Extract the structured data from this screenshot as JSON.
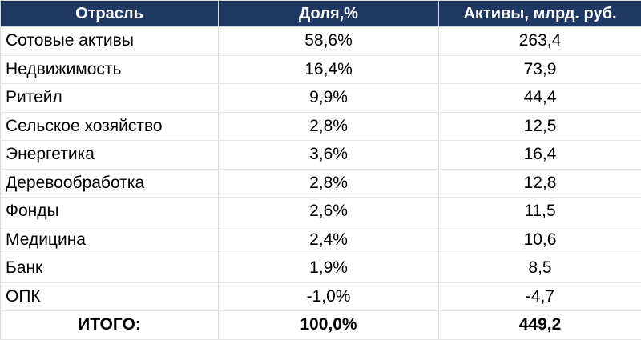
{
  "table": {
    "headers": [
      "Отрасль",
      "Доля,%",
      "Активы, млрд. руб."
    ],
    "rows": [
      [
        "Сотовые активы",
        "58,6%",
        "263,4"
      ],
      [
        "Недвижимость",
        "16,4%",
        "73,9"
      ],
      [
        "Ритейл",
        "9,9%",
        "44,4"
      ],
      [
        "Сельское хозяйство",
        "2,8%",
        "12,5"
      ],
      [
        "Энергетика",
        "3,6%",
        "16,4"
      ],
      [
        "Деревообработка",
        "2,8%",
        "12,8"
      ],
      [
        "Фонды",
        "2,6%",
        "11,5"
      ],
      [
        "Медицина",
        "2,4%",
        "10,6"
      ],
      [
        "Банк",
        "1,9%",
        "8,5"
      ],
      [
        "ОПК",
        "-1,0%",
        "-4,7"
      ]
    ],
    "total": [
      "ИТОГО:",
      "100,0%",
      "449,2"
    ]
  },
  "colors": {
    "header_bg": "#1f3864",
    "header_text": "#ffffff"
  }
}
